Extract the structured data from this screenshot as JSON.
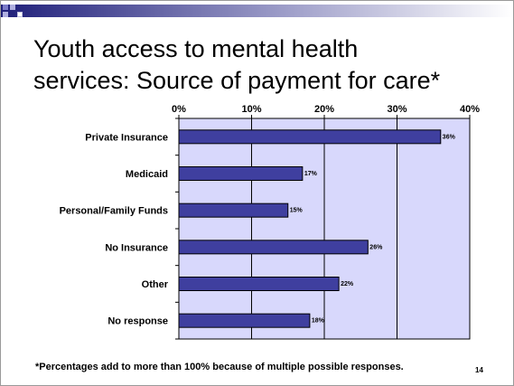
{
  "slide": {
    "title_line1": "Youth access to mental health",
    "title_line2": "services:  Source of payment for care*",
    "footnote": "*Percentages add to more than 100% because of multiple possible responses.",
    "page_number": "14"
  },
  "colors": {
    "bar_fill": "#3f3f9f",
    "plot_background": "#d8d8fc",
    "gridline": "#000000",
    "header_gradient_start": "#1f1f7a",
    "header_gradient_end": "#ffffff",
    "deco_square": "#7a7ac8"
  },
  "chart_data": {
    "type": "bar",
    "orientation": "horizontal",
    "title": "",
    "xlabel": "",
    "ylabel": "",
    "categories": [
      "Private Insurance",
      "Medicaid",
      "Personal/Family Funds",
      "No Insurance",
      "Other",
      "No response"
    ],
    "values": [
      36,
      17,
      15,
      26,
      22,
      18
    ],
    "data_labels": [
      "36%",
      "17%",
      "15%",
      "26%",
      "22%",
      "18%"
    ],
    "xlim": [
      0,
      40
    ],
    "xticks": [
      0,
      10,
      20,
      30,
      40
    ],
    "xtick_labels": [
      "0%",
      "10%",
      "20%",
      "30%",
      "40%"
    ],
    "x_axis_position": "top",
    "grid": true
  }
}
